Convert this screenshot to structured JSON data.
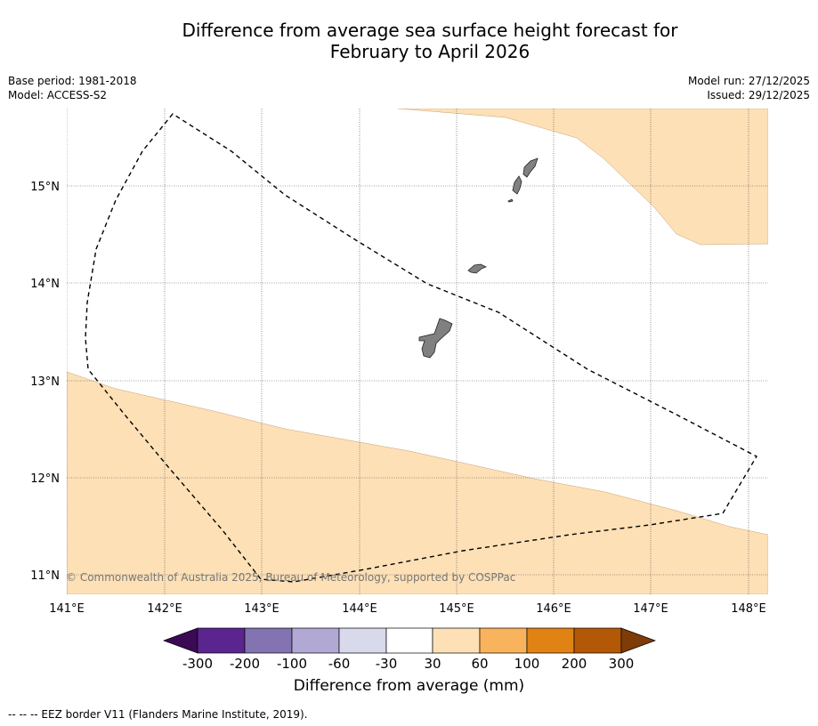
{
  "title": {
    "line1": "Difference from average sea surface height forecast for",
    "line2": "February to April 2026"
  },
  "meta_left": {
    "base_period": "Base period: 1981-2018",
    "model": "Model: ACCESS-S2"
  },
  "meta_right": {
    "model_run": "Model run: 27/12/2025",
    "issued": "Issued: 29/12/2025"
  },
  "map": {
    "lat_labels": [
      "15°N",
      "14°N",
      "13°N",
      "12°N",
      "11°N"
    ],
    "lon_labels": [
      "141°E",
      "142°E",
      "143°E",
      "144°E",
      "145°E",
      "146°E",
      "147°E",
      "148°E"
    ],
    "copyright": "© Commonwealth of Australia 2025, Bureau of Meteorology, supported by COSPPac",
    "colors": {
      "anomaly_30_60": "#fde0b6",
      "land": "#808080"
    },
    "features": {
      "north_shade": "30 to 60 mm region (north-east)",
      "south_shade": "30 to 60 mm region (south)",
      "islands": [
        "Guam",
        "Rota",
        "Tinian",
        "Saipan"
      ],
      "eez": "EEZ border"
    }
  },
  "colorbar": {
    "tick_labels": [
      "-300",
      "-200",
      "-100",
      "-60",
      "-30",
      "30",
      "60",
      "100",
      "200",
      "300"
    ],
    "colors": [
      "#3a0a54",
      "#5b2590",
      "#8373b1",
      "#b2a8d4",
      "#d9d9ec",
      "#ffffff",
      "#fde0b6",
      "#f9b35c",
      "#e08214",
      "#b35807",
      "#7f3b08"
    ],
    "label": "Difference from average (mm)"
  },
  "footer": {
    "legend": "--  --  -- EEZ border V11 (Flanders Marine Institute, 2019)."
  }
}
